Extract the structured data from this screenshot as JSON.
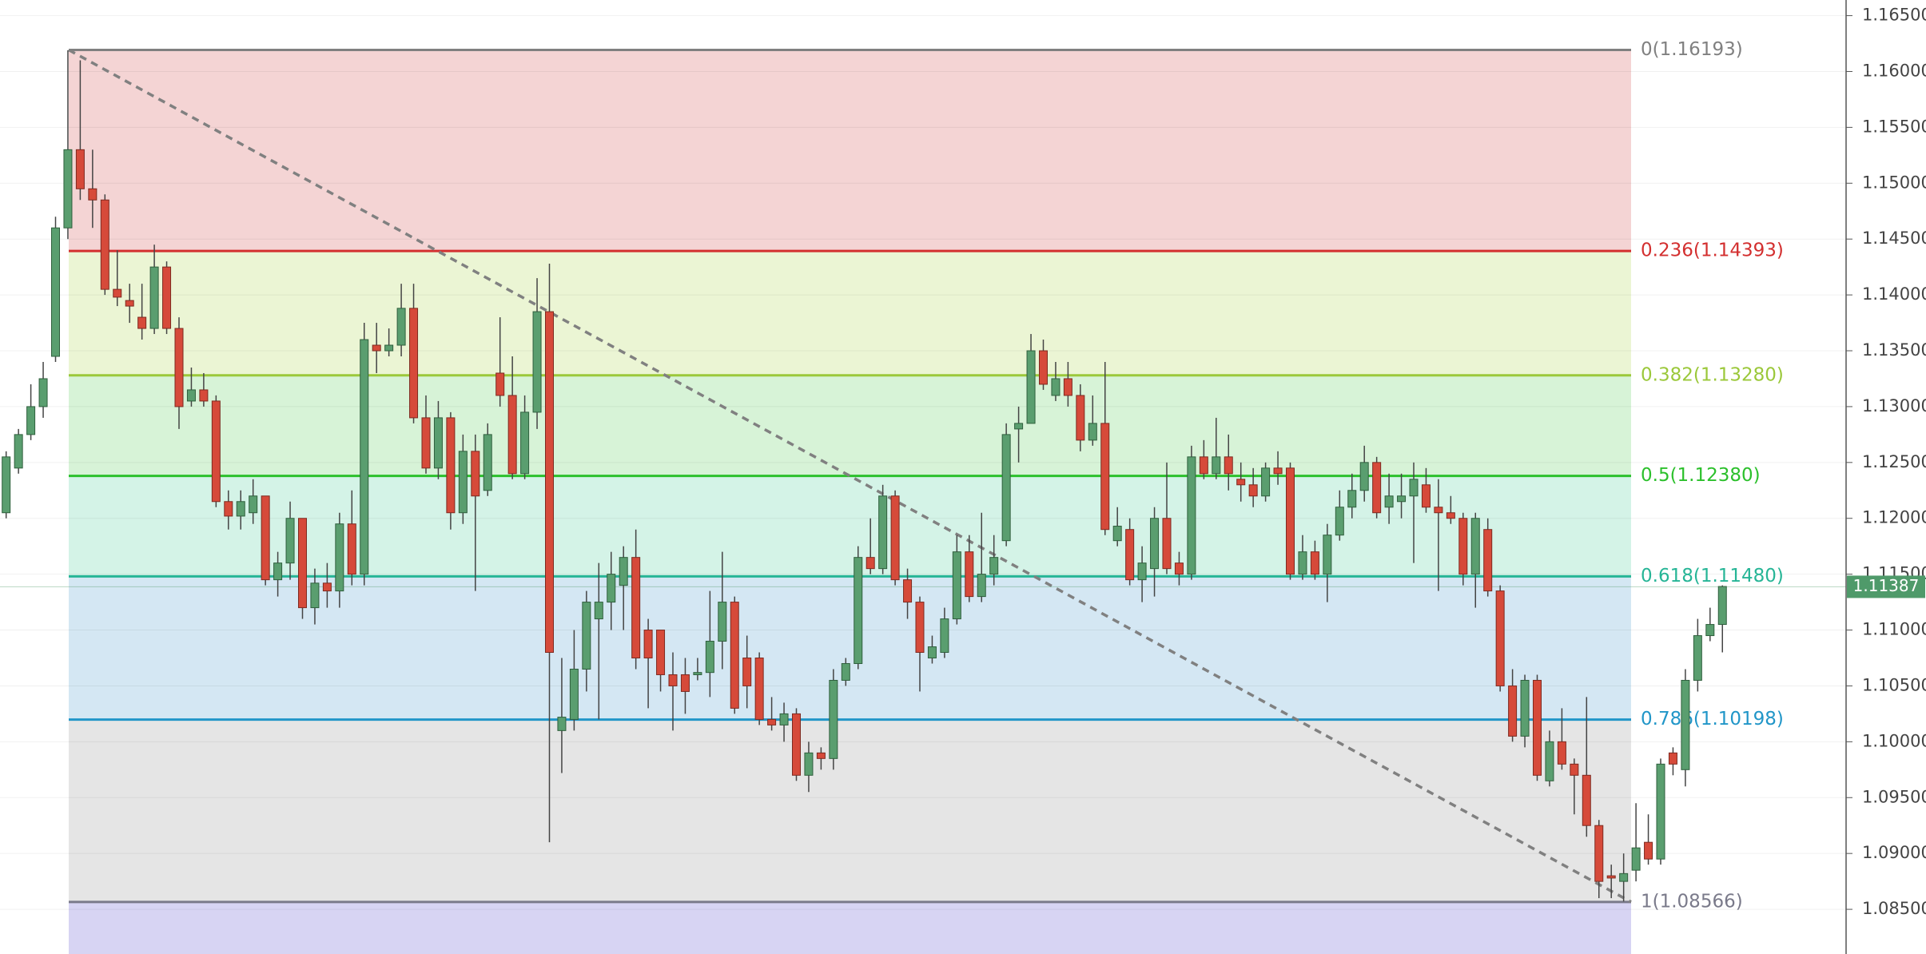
{
  "chart_data": {
    "type": "candlestick",
    "categories": [
      null,
      null,
      null,
      null,
      null,
      null,
      null,
      null,
      null,
      null,
      null,
      null,
      null,
      null,
      null,
      null,
      null,
      null,
      null,
      null,
      null,
      null,
      null,
      null,
      null,
      null,
      null,
      null,
      null,
      null,
      null,
      null,
      null,
      null,
      null,
      null,
      null,
      null,
      null,
      null,
      null,
      null,
      null,
      null,
      null,
      null,
      null,
      null,
      null,
      null,
      null,
      null,
      null,
      null,
      null,
      null,
      null,
      null,
      null,
      null,
      null,
      null,
      null,
      null,
      null,
      null,
      null,
      null,
      null,
      null,
      null,
      null,
      null,
      null,
      null,
      null,
      null,
      null,
      null,
      null,
      null,
      null,
      null,
      null,
      null,
      null,
      null,
      null,
      null,
      null,
      null,
      null,
      null,
      null,
      null,
      null,
      null,
      null,
      null,
      null,
      null,
      null,
      null,
      null,
      null,
      null,
      null,
      null,
      null,
      null,
      null,
      null,
      null,
      null,
      null,
      null,
      null,
      null,
      null,
      null,
      null,
      null,
      null,
      null,
      null,
      null,
      null,
      null,
      null,
      null,
      null,
      null,
      null,
      null,
      null,
      null,
      null,
      null,
      null,
      null
    ],
    "open": [
      1.1205,
      1.1245,
      1.1275,
      1.13,
      1.1345,
      1.146,
      1.153,
      1.1495,
      1.1485,
      1.1405,
      1.1395,
      1.138,
      1.137,
      1.1425,
      1.137,
      1.1305,
      1.1315,
      1.1305,
      1.1215,
      1.1202,
      1.1205,
      1.122,
      1.1145,
      1.116,
      1.12,
      1.112,
      1.1142,
      1.1135,
      1.1195,
      1.115,
      1.1355,
      1.135,
      1.1355,
      1.1388,
      1.129,
      1.1245,
      1.129,
      1.1205,
      1.126,
      1.1225,
      1.133,
      1.131,
      1.124,
      1.1295,
      1.1385,
      1.101,
      1.102,
      1.1065,
      1.111,
      1.1125,
      1.114,
      1.1165,
      1.11,
      1.11,
      1.106,
      1.106,
      1.106,
      1.1062,
      1.109,
      1.1125,
      1.1075,
      1.1075,
      1.102,
      1.1015,
      1.1025,
      1.097,
      1.099,
      1.0985,
      1.1055,
      1.107,
      1.1165,
      1.1155,
      1.122,
      1.1145,
      1.1125,
      1.1075,
      1.108,
      1.111,
      1.117,
      1.113,
      1.115,
      1.118,
      1.128,
      1.1285,
      1.135,
      1.131,
      1.1325,
      1.131,
      1.127,
      1.1285,
      1.118,
      1.119,
      1.1145,
      1.1155,
      1.12,
      1.116,
      1.115,
      1.1255,
      1.124,
      1.1255,
      1.1235,
      1.123,
      1.122,
      1.1245,
      1.1245,
      1.115,
      1.117,
      1.115,
      1.1185,
      1.121,
      1.1225,
      1.125,
      1.121,
      1.1215,
      1.122,
      1.123,
      1.121,
      1.1205,
      1.12,
      1.115,
      1.119,
      1.1135,
      1.105,
      1.1005,
      1.1055,
      1.0965,
      1.1,
      1.098,
      1.097,
      1.0925,
      1.088,
      1.0875,
      1.0885,
      1.091,
      1.0895,
      1.099,
      1.0975,
      1.1055,
      1.1095,
      1.1105
    ],
    "high": [
      1.126,
      1.128,
      1.132,
      1.134,
      1.147,
      1.1619,
      1.161,
      1.153,
      1.149,
      1.144,
      1.141,
      1.141,
      1.1445,
      1.143,
      1.138,
      1.1335,
      1.133,
      1.131,
      1.1225,
      1.1225,
      1.1235,
      1.122,
      1.117,
      1.1215,
      1.12,
      1.1155,
      1.116,
      1.1205,
      1.1225,
      1.1375,
      1.1375,
      1.137,
      1.141,
      1.141,
      1.131,
      1.1305,
      1.1295,
      1.1275,
      1.1275,
      1.1285,
      1.138,
      1.1345,
      1.131,
      1.1415,
      1.1428,
      1.1075,
      1.11,
      1.1135,
      1.116,
      1.117,
      1.1175,
      1.119,
      1.111,
      1.11,
      1.108,
      1.1075,
      1.1075,
      1.1135,
      1.117,
      1.113,
      1.1095,
      1.108,
      1.104,
      1.1035,
      1.103,
      1.1,
      1.0995,
      1.1065,
      1.1075,
      1.1175,
      1.12,
      1.123,
      1.1225,
      1.1155,
      1.113,
      1.1095,
      1.112,
      1.1185,
      1.1185,
      1.1205,
      1.1185,
      1.1285,
      1.13,
      1.1365,
      1.136,
      1.134,
      1.134,
      1.132,
      1.131,
      1.134,
      1.121,
      1.12,
      1.1175,
      1.121,
      1.125,
      1.117,
      1.1265,
      1.127,
      1.129,
      1.1275,
      1.125,
      1.1245,
      1.125,
      1.126,
      1.125,
      1.1185,
      1.118,
      1.1195,
      1.1225,
      1.124,
      1.1265,
      1.1255,
      1.124,
      1.124,
      1.125,
      1.1245,
      1.1235,
      1.122,
      1.1205,
      1.1205,
      1.12,
      1.114,
      1.1065,
      1.106,
      1.106,
      1.101,
      1.103,
      1.0985,
      1.104,
      1.093,
      1.089,
      1.09,
      1.0945,
      1.0935,
      1.0985,
      1.0995,
      1.1065,
      1.111,
      1.112,
      1.114
    ],
    "low": [
      1.12,
      1.124,
      1.127,
      1.129,
      1.134,
      1.145,
      1.1485,
      1.146,
      1.14,
      1.139,
      1.1375,
      1.136,
      1.1365,
      1.1365,
      1.128,
      1.13,
      1.13,
      1.121,
      1.119,
      1.119,
      1.1195,
      1.114,
      1.113,
      1.1145,
      1.111,
      1.1105,
      1.112,
      1.112,
      1.114,
      1.114,
      1.133,
      1.1345,
      1.1345,
      1.1285,
      1.124,
      1.1235,
      1.119,
      1.1195,
      1.1135,
      1.122,
      1.13,
      1.1235,
      1.1235,
      1.128,
      1.091,
      1.0972,
      1.101,
      1.1045,
      1.102,
      1.11,
      1.11,
      1.1065,
      1.103,
      1.1045,
      1.101,
      1.1025,
      1.1055,
      1.104,
      1.1065,
      1.1025,
      1.103,
      1.1015,
      1.101,
      1.1,
      1.0965,
      1.0955,
      1.0975,
      1.0975,
      1.105,
      1.1065,
      1.115,
      1.115,
      1.114,
      1.111,
      1.1045,
      1.107,
      1.1075,
      1.1105,
      1.1125,
      1.1125,
      1.114,
      1.1175,
      1.125,
      1.1285,
      1.1315,
      1.1305,
      1.13,
      1.126,
      1.1265,
      1.1185,
      1.1175,
      1.114,
      1.1125,
      1.113,
      1.115,
      1.114,
      1.1145,
      1.1235,
      1.1235,
      1.1225,
      1.1215,
      1.121,
      1.1215,
      1.123,
      1.1145,
      1.1145,
      1.1145,
      1.1125,
      1.118,
      1.12,
      1.1215,
      1.12,
      1.1195,
      1.12,
      1.116,
      1.1205,
      1.1135,
      1.1195,
      1.114,
      1.112,
      1.113,
      1.1045,
      1.1,
      1.0995,
      1.0965,
      1.096,
      1.0975,
      1.0935,
      1.0915,
      1.086,
      1.086,
      1.0857,
      1.0875,
      1.089,
      1.089,
      1.097,
      1.096,
      1.1045,
      1.109,
      1.108
    ],
    "close": [
      1.1255,
      1.1275,
      1.13,
      1.1325,
      1.146,
      1.153,
      1.1495,
      1.1485,
      1.1405,
      1.1398,
      1.139,
      1.137,
      1.1425,
      1.137,
      1.13,
      1.1315,
      1.1305,
      1.1215,
      1.1202,
      1.1215,
      1.122,
      1.1145,
      1.116,
      1.12,
      1.112,
      1.1142,
      1.1135,
      1.1195,
      1.115,
      1.136,
      1.135,
      1.1355,
      1.1388,
      1.129,
      1.1245,
      1.129,
      1.1205,
      1.126,
      1.122,
      1.1275,
      1.131,
      1.124,
      1.1295,
      1.1385,
      1.108,
      1.1022,
      1.1065,
      1.1125,
      1.1125,
      1.115,
      1.1165,
      1.1075,
      1.1075,
      1.106,
      1.105,
      1.1045,
      1.1062,
      1.109,
      1.1125,
      1.103,
      1.105,
      1.102,
      1.1015,
      1.1025,
      1.097,
      1.099,
      1.0985,
      1.1055,
      1.107,
      1.1165,
      1.1155,
      1.122,
      1.1145,
      1.1125,
      1.108,
      1.1085,
      1.111,
      1.117,
      1.113,
      1.115,
      1.1165,
      1.1275,
      1.1285,
      1.135,
      1.132,
      1.1325,
      1.131,
      1.127,
      1.1285,
      1.119,
      1.1193,
      1.1145,
      1.116,
      1.12,
      1.1155,
      1.115,
      1.1255,
      1.124,
      1.1255,
      1.124,
      1.123,
      1.122,
      1.1245,
      1.124,
      1.115,
      1.117,
      1.115,
      1.1185,
      1.121,
      1.1225,
      1.125,
      1.1205,
      1.122,
      1.122,
      1.1235,
      1.121,
      1.1205,
      1.12,
      1.115,
      1.12,
      1.1135,
      1.105,
      1.1005,
      1.1055,
      1.097,
      1.1,
      1.098,
      1.097,
      1.0925,
      1.0875,
      1.0878,
      1.0882,
      1.0905,
      1.0895,
      1.098,
      1.098,
      1.1055,
      1.1095,
      1.1105,
      1.1139
    ],
    "up_color": "#5a9e6f",
    "down_color": "#d64a3a",
    "ylim": [
      1.081,
      1.1664
    ],
    "yticks": [
      {
        "value": 1.085,
        "label": "1.08500"
      },
      {
        "value": 1.09,
        "label": "1.09000"
      },
      {
        "value": 1.095,
        "label": "1.09500"
      },
      {
        "value": 1.1,
        "label": "1.10000"
      },
      {
        "value": 1.105,
        "label": "1.10500"
      },
      {
        "value": 1.11,
        "label": "1.11000"
      },
      {
        "value": 1.115,
        "label": "1.11500"
      },
      {
        "value": 1.12,
        "label": "1.12000"
      },
      {
        "value": 1.125,
        "label": "1.12500"
      },
      {
        "value": 1.13,
        "label": "1.13000"
      },
      {
        "value": 1.135,
        "label": "1.13500"
      },
      {
        "value": 1.14,
        "label": "1.14000"
      },
      {
        "value": 1.145,
        "label": "1.14500"
      },
      {
        "value": 1.15,
        "label": "1.15000"
      },
      {
        "value": 1.155,
        "label": "1.15500"
      },
      {
        "value": 1.16,
        "label": "1.16000"
      },
      {
        "value": 1.165,
        "label": "1.16500"
      }
    ],
    "grid": true,
    "fib_levels": [
      {
        "label": "0(1.16193)",
        "value": 1.16193,
        "color": "#808080",
        "fill": "#f4d4d4"
      },
      {
        "label": "0.236(1.14393)",
        "value": 1.14393,
        "color": "#d32f2f",
        "fill": "#ebf5d4"
      },
      {
        "label": "0.382(1.13280)",
        "value": 1.1328,
        "color": "#9bc83a",
        "fill": "#d7f3d7"
      },
      {
        "label": "0.5(1.12380)",
        "value": 1.1238,
        "color": "#2cc02c",
        "fill": "#d4f3e7"
      },
      {
        "label": "0.618(1.11480)",
        "value": 1.1148,
        "color": "#26b596",
        "fill": "#d4e7f3"
      },
      {
        "label": "0.786(1.10198)",
        "value": 1.10198,
        "color": "#2196c8",
        "fill": "#e5e5e5"
      },
      {
        "label": "1(1.08566)",
        "value": 1.08566,
        "color": "#7a7a8a",
        "fill": "#d7d4f3"
      }
    ],
    "last_price": 1.11387,
    "last_price_color": "#4f9a6a"
  }
}
